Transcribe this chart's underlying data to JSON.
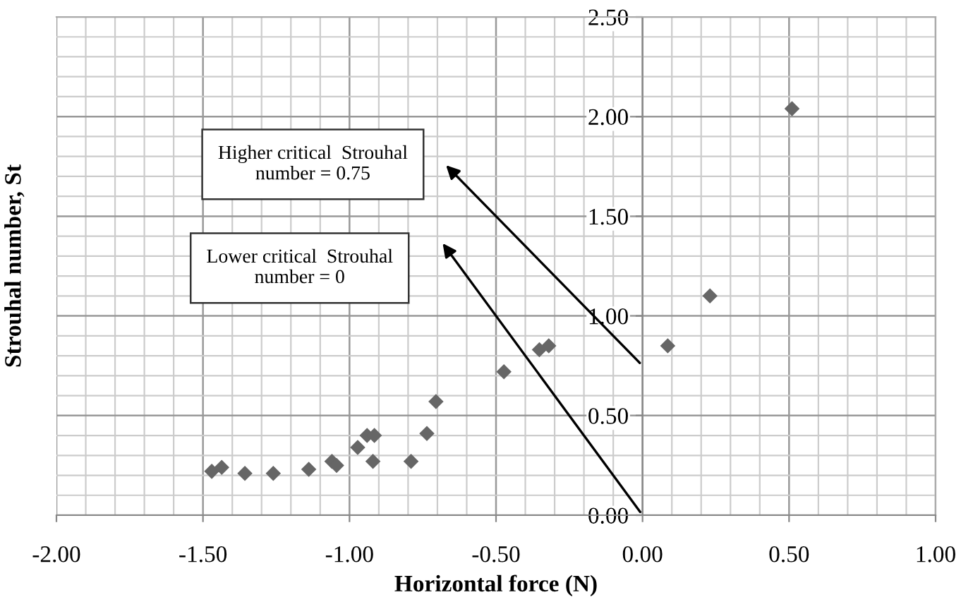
{
  "chart_data": {
    "type": "scatter",
    "xlabel": "Horizontal force (N)",
    "ylabel": "Strouhal number, St",
    "x": [
      -1.47,
      -1.436,
      -1.357,
      -1.26,
      -1.139,
      -1.06,
      -1.044,
      -0.972,
      -0.94,
      -0.915,
      -0.92,
      -0.79,
      -0.736,
      -0.705,
      -0.473,
      -0.352,
      -0.32,
      0.086,
      0.23,
      0.51
    ],
    "values": [
      0.22,
      0.24,
      0.21,
      0.21,
      0.23,
      0.27,
      0.25,
      0.34,
      0.4,
      0.4,
      0.27,
      0.27,
      0.41,
      0.57,
      0.72,
      0.83,
      0.85,
      0.85,
      1.1,
      2.04
    ],
    "color": "#666666",
    "marker": "diamond",
    "xlim": [
      -2.0,
      1.0
    ],
    "xticks": [
      {
        "value": -2.0,
        "label": "-2.00"
      },
      {
        "value": -1.5,
        "label": "-1.50"
      },
      {
        "value": -1.0,
        "label": "-1.00"
      },
      {
        "value": -0.5,
        "label": "-0.50"
      },
      {
        "value": 0.0,
        "label": "0.00"
      },
      {
        "value": 0.5,
        "label": "0.50"
      },
      {
        "value": 1.0,
        "label": "1.00"
      }
    ],
    "ylim": [
      0.0,
      2.5
    ],
    "yticks": [
      {
        "value": 0.0,
        "label": "0.00"
      },
      {
        "value": 0.5,
        "label": "0.50"
      },
      {
        "value": 1.0,
        "label": "1.00"
      },
      {
        "value": 1.5,
        "label": "1.50"
      },
      {
        "value": 2.0,
        "label": "2.00"
      },
      {
        "value": 2.5,
        "label": "2.50"
      }
    ],
    "grid": true,
    "annotations": [
      "Higher critical  Strouhal\nnumber = 0.75",
      "Lower critical  Strouhal\nnumber = 0"
    ]
  }
}
